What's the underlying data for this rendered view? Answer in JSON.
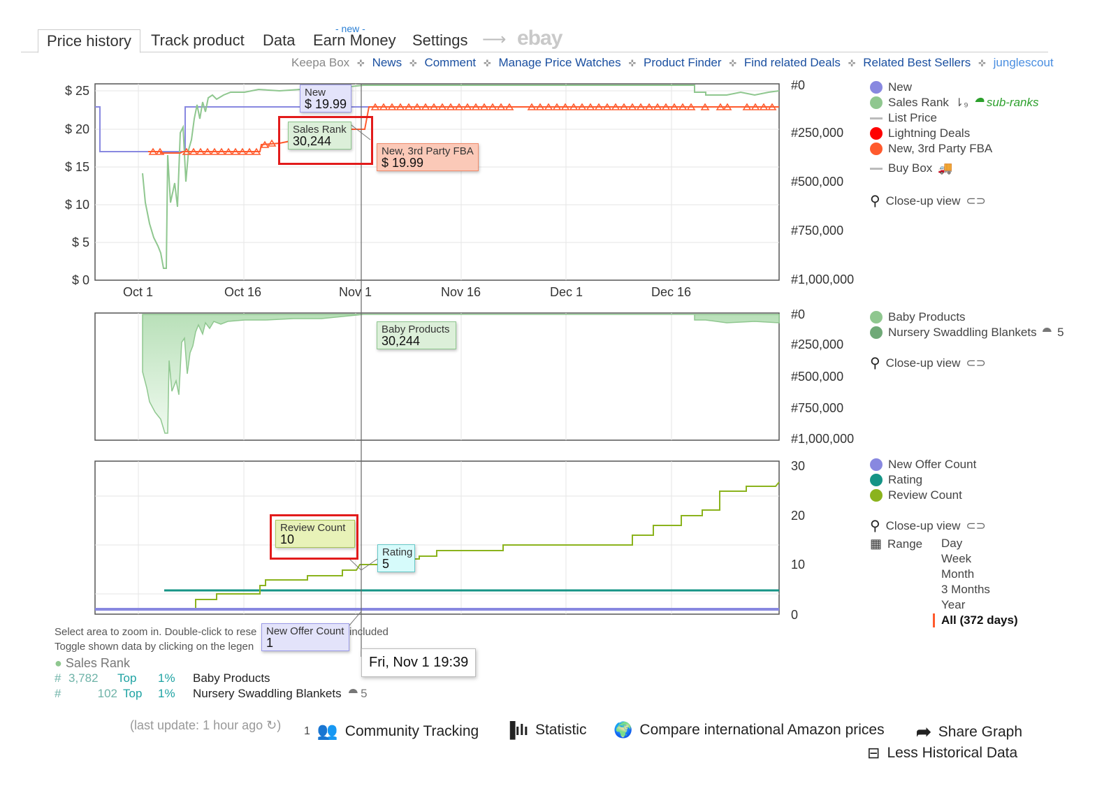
{
  "tabs": [
    {
      "label": "Price history",
      "active": true
    },
    {
      "label": "Track product"
    },
    {
      "label": "Data"
    },
    {
      "label": "Earn Money",
      "badge": "- new -"
    },
    {
      "label": "Settings"
    }
  ],
  "ebay_label": "ebay",
  "links": {
    "keepa_box": "Keepa Box",
    "news": "News",
    "comment": "Comment",
    "manage_price_watches": "Manage Price Watches",
    "product_finder": "Product Finder",
    "find_related_deals": "Find related Deals",
    "related_best_sellers": "Related Best Sellers",
    "junglescout": "junglescout"
  },
  "colors": {
    "new": "#8888e0",
    "sales_rank": "#8fc78f",
    "list_price": "#c8c8c8",
    "lightning": "#ff0000",
    "fba": "#ff5a2d",
    "rating": "#159486",
    "review": "#8bb31d",
    "highlight": "#e21b1b"
  },
  "price_chart": {
    "y_labels": [
      "$ 25",
      "$ 20",
      "$ 15",
      "$ 10",
      "$ 5",
      "$ 0"
    ],
    "y2_labels": [
      "#0",
      "#250,000",
      "#500,000",
      "#750,000",
      "#1,000,000"
    ],
    "x_labels": [
      "Oct 1",
      "Oct 16",
      "Nov 1",
      "Nov 16",
      "Dec 1",
      "Dec 16"
    ]
  },
  "rank_chart": {
    "y2_labels": [
      "#0",
      "#250,000",
      "#500,000",
      "#750,000",
      "#1,000,000"
    ]
  },
  "count_chart": {
    "y2_labels": [
      "30",
      "20",
      "10",
      "0"
    ]
  },
  "legend1": [
    {
      "label": "New",
      "icon": "dot",
      "color": "#8888e0"
    },
    {
      "label": "Sales Rank",
      "icon": "dot",
      "color": "#8fc78f"
    },
    {
      "label": "List Price",
      "icon": "dash",
      "color": "#c8c8c8"
    },
    {
      "label": "Lightning Deals",
      "icon": "dot",
      "color": "#ff0000"
    },
    {
      "label": "New, 3rd Party FBA",
      "icon": "dot",
      "color": "#ff5a2d"
    },
    {
      "label": "Buy Box",
      "icon": "dash",
      "color": "#c8c8c8"
    }
  ],
  "sub_ranks_label": "sub-ranks",
  "closeup_label": "Close-up view",
  "legend2": [
    {
      "label": "Baby Products",
      "color": "#8fc78f"
    },
    {
      "label": "Nursery Swaddling Blankets",
      "color": "#6fa977"
    }
  ],
  "legend2_subcount": "5",
  "legend3": [
    {
      "label": "New Offer Count",
      "color": "#8888e0"
    },
    {
      "label": "Rating",
      "color": "#159486"
    },
    {
      "label": "Review Count",
      "color": "#8bb31d"
    }
  ],
  "range": {
    "label": "Range",
    "options": [
      "Day",
      "Week",
      "Month",
      "3 Months",
      "Year",
      "All (372 days)"
    ],
    "selected": "All (372 days)"
  },
  "tooltips": {
    "new": {
      "title": "New",
      "value": "$ 19.99"
    },
    "sales_rank": {
      "title": "Sales Rank",
      "value": "30,244"
    },
    "fba": {
      "title": "New, 3rd Party FBA",
      "value": "$ 19.99"
    },
    "baby": {
      "title": "Baby Products",
      "value": "30,244"
    },
    "review": {
      "title": "Review Count",
      "value": "10"
    },
    "rating": {
      "title": "Rating",
      "value": "5"
    },
    "offer": {
      "title": "New Offer Count",
      "value": "1"
    },
    "date": "Fri, Nov 1 19:39"
  },
  "hints": {
    "line1a": "Select area to zoom in. Double-click to rese",
    "line1b": "included",
    "line2": "Toggle shown data by clicking on the legen"
  },
  "sales_rank_block": {
    "title": "Sales Rank",
    "rows": [
      {
        "hash": "#",
        "rank": "3,782",
        "top": "Top",
        "pct": "1%",
        "cat": "Baby Products"
      },
      {
        "hash": "#",
        "rank": "102",
        "top": "Top",
        "pct": "1%",
        "cat": "Nursery Swaddling Blankets",
        "sub": "5"
      }
    ]
  },
  "footer": {
    "last_update": "(last update: 1 hour ago",
    "community_count": "1",
    "community": "Community Tracking",
    "statistic": "Statistic",
    "compare": "Compare international Amazon prices",
    "share": "Share Graph",
    "less": "Less Historical Data"
  }
}
